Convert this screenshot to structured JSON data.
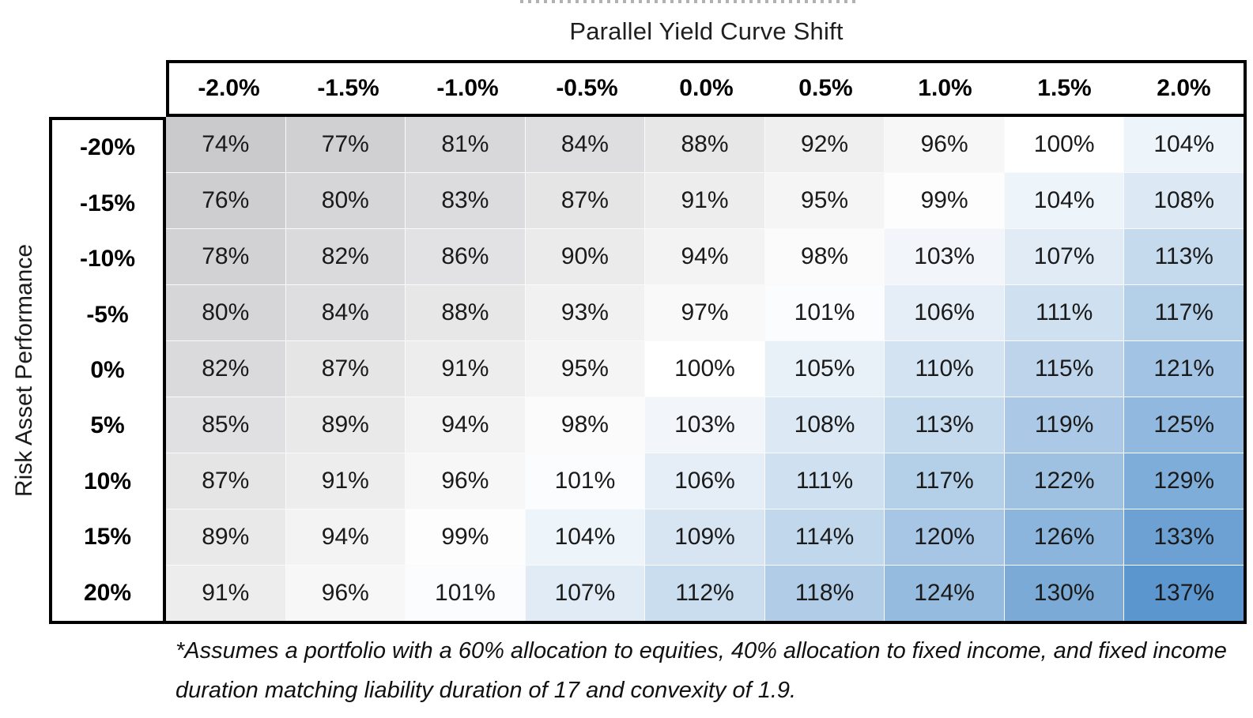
{
  "title": "Parallel Yield Curve Shift",
  "y_axis_label": "Risk Asset Performance",
  "footnote": "*Assumes a portfolio with a 60% allocation to equities, 40% allocation to fixed income, and fixed income duration matching liability duration of 17 and convexity of 1.9.",
  "colors": {
    "border": "#000000",
    "clipped_title_artifact": "#b1b1b1",
    "scale_min": "#CACACC",
    "scale_mid": "#FFFFFF",
    "scale_max": "#5C96CE"
  },
  "chart_data": {
    "type": "heatmap",
    "title": "Parallel Yield Curve Shift",
    "xlabel": "Parallel Yield Curve Shift",
    "ylabel": "Risk Asset Performance",
    "cell_format": "percent",
    "columns": [
      "-2.0%",
      "-1.5%",
      "-1.0%",
      "-0.5%",
      "0.0%",
      "0.5%",
      "1.0%",
      "1.5%",
      "2.0%"
    ],
    "rows": [
      "-20%",
      "-15%",
      "-10%",
      "-5%",
      "0%",
      "5%",
      "10%",
      "15%",
      "20%"
    ],
    "values": [
      [
        74,
        77,
        81,
        84,
        88,
        92,
        96,
        100,
        104
      ],
      [
        76,
        80,
        83,
        87,
        91,
        95,
        99,
        104,
        108
      ],
      [
        78,
        82,
        86,
        90,
        94,
        98,
        103,
        107,
        113
      ],
      [
        80,
        84,
        88,
        93,
        97,
        101,
        106,
        111,
        117
      ],
      [
        82,
        87,
        91,
        95,
        100,
        105,
        110,
        115,
        121
      ],
      [
        85,
        89,
        94,
        98,
        103,
        108,
        113,
        119,
        125
      ],
      [
        87,
        91,
        96,
        101,
        106,
        111,
        117,
        122,
        129
      ],
      [
        89,
        94,
        99,
        104,
        109,
        114,
        120,
        126,
        133
      ],
      [
        91,
        96,
        101,
        107,
        112,
        118,
        124,
        130,
        137
      ]
    ],
    "color_scale": {
      "min": {
        "value": 74,
        "color": "#CACACC"
      },
      "mid": {
        "value": 100,
        "color": "#FFFFFF"
      },
      "max": {
        "value": 137,
        "color": "#5C96CE"
      }
    },
    "legend": "none",
    "grid": "off",
    "footnote": "*Assumes a portfolio with a 60% allocation to equities, 40% allocation to fixed income, and fixed income duration matching liability duration of 17 and convexity of 1.9."
  }
}
